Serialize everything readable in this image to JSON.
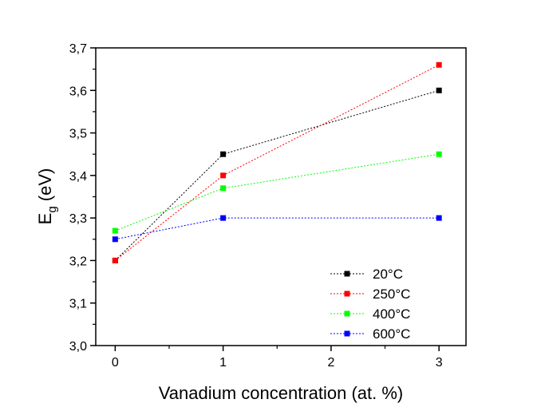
{
  "chart_data": {
    "type": "line",
    "title": "",
    "xlabel": "Vanadium concentration (at. %)",
    "ylabel": "E",
    "ylabel_sub": "g",
    "ylabel_suffix": " (eV)",
    "xlim": [
      -0.18,
      3.25
    ],
    "ylim": [
      3.0,
      3.7
    ],
    "xticks": [
      0,
      1,
      2,
      3
    ],
    "xtick_labels": [
      "0",
      "1",
      "2",
      "3"
    ],
    "yticks": [
      3.0,
      3.1,
      3.2,
      3.3,
      3.4,
      3.5,
      3.6,
      3.7
    ],
    "ytick_labels": [
      "3,0",
      "3,1",
      "3,2",
      "3,3",
      "3,4",
      "3,5",
      "3,6",
      "3,7"
    ],
    "grid": false,
    "legend_position": "bottom-right",
    "x": [
      0,
      1,
      3
    ],
    "series": [
      {
        "name": "20°C",
        "color": "#000000",
        "values": [
          3.2,
          3.45,
          3.6
        ]
      },
      {
        "name": "250°C",
        "color": "#ff0000",
        "values": [
          3.2,
          3.4,
          3.66
        ]
      },
      {
        "name": "400°C",
        "color": "#00ff00",
        "values": [
          3.27,
          3.37,
          3.45
        ]
      },
      {
        "name": "600°C",
        "color": "#0000ff",
        "values": [
          3.25,
          3.3,
          3.3
        ]
      }
    ]
  }
}
